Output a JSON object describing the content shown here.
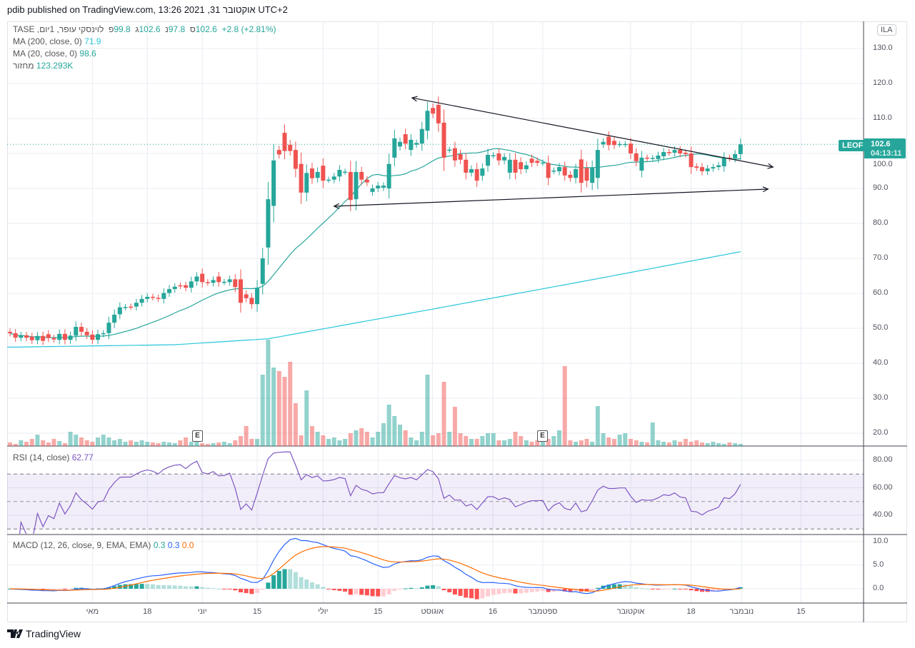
{
  "header": {
    "published": "pdib published on TradingView.com, אוקטובר 31, 2021 13:26 UTC+2"
  },
  "legend": {
    "symbol": "לוינסקי עופר, 1יום, TASE",
    "open_label": "פ",
    "open": "99.8",
    "high_label": "ג",
    "high": "102.6",
    "low_label": "נ",
    "low": "97.8",
    "close_label": "ס",
    "close": "102.6",
    "change": "+2.8 (+2.81%)",
    "ma200_label": "MA (200, close, 0)",
    "ma200_value": "71.9",
    "ma20_label": "MA (20, close, 0)",
    "ma20_value": "98.6",
    "volume_label": "מחזור",
    "volume_value": "123.293K"
  },
  "rsi_legend": {
    "label": "RSI (14, close)",
    "value": "62.77"
  },
  "macd_legend": {
    "label": "MACD (12, 26, close, 9, EMA, EMA)",
    "hist": "0.3",
    "macd": "0.3",
    "signal": "0.0"
  },
  "price_axis": {
    "currency": "ILA",
    "labels": [
      "130.0",
      "120.0",
      "110.0",
      "100.0",
      "90.0",
      "80.0",
      "70.0",
      "60.0",
      "50.0",
      "40.0",
      "30.0",
      "20.0"
    ],
    "rsi_labels": [
      "80.00",
      "60.00",
      "40.00"
    ],
    "macd_labels": [
      "10.0",
      "5.0",
      "0.0"
    ],
    "last_symbol": "LEOF",
    "last_price": "102.6",
    "countdown": "04:13:11"
  },
  "time_axis": [
    {
      "label": "מאי",
      "bar": 15
    },
    {
      "label": "18",
      "bar": 25
    },
    {
      "label": "יוני",
      "bar": 35
    },
    {
      "label": "15",
      "bar": 45
    },
    {
      "label": "יולי",
      "bar": 57
    },
    {
      "label": "15",
      "bar": 67
    },
    {
      "label": "אוגוסט",
      "bar": 76.9
    },
    {
      "label": "16",
      "bar": 87.9
    },
    {
      "label": "ספטמבר",
      "bar": 97
    },
    {
      "label": "אוקטובר",
      "bar": 113
    },
    {
      "label": "18",
      "bar": 124
    },
    {
      "label": "נובמבר",
      "bar": 133.2
    },
    {
      "label": "15",
      "bar": 144
    }
  ],
  "earnings": [
    {
      "label": "E",
      "bar": 34.2
    },
    {
      "label": "E",
      "bar": 97
    }
  ],
  "footer": {
    "brand": "TradingView"
  },
  "colors": {
    "up": "#26a69a",
    "down": "#ef5350",
    "ma20": "#26a69a",
    "ma200": "#26c6da",
    "rsi": "#7e57c2",
    "macd": "#2962ff",
    "signal": "#ff6d00"
  },
  "chart_data": {
    "type": "candlestick",
    "ylim": [
      18,
      138
    ],
    "candles_oc": [
      [
        49,
        48.6
      ],
      [
        48.6,
        47.3
      ],
      [
        47.3,
        48.0
      ],
      [
        48,
        47.3
      ],
      [
        47.6,
        46.6
      ],
      [
        46.6,
        47.8
      ],
      [
        47.8,
        46.4
      ],
      [
        48.3,
        47.2
      ],
      [
        47.2,
        46.8
      ],
      [
        46.7,
        48.4
      ],
      [
        48.4,
        46.7
      ],
      [
        46.7,
        47.9
      ],
      [
        47.9,
        50.4
      ],
      [
        50.4,
        49
      ],
      [
        49,
        48
      ],
      [
        48.2,
        46.7
      ],
      [
        46.7,
        48.3
      ],
      [
        48.3,
        48.6
      ],
      [
        48.6,
        51.6
      ],
      [
        51.6,
        53.9
      ],
      [
        54,
        56
      ],
      [
        56,
        56.1
      ],
      [
        56.2,
        56.1
      ],
      [
        56.2,
        57.3
      ],
      [
        57.3,
        58.4
      ],
      [
        58.4,
        59
      ],
      [
        59,
        58.8
      ],
      [
        58.7,
        58.4
      ],
      [
        58.4,
        60.1
      ],
      [
        60.1,
        61.2
      ],
      [
        61.2,
        61.9
      ],
      [
        62.3,
        62.1
      ],
      [
        62.3,
        61.6
      ],
      [
        61.6,
        63.4
      ],
      [
        63.4,
        64.8
      ],
      [
        65.6,
        63.2
      ],
      [
        63.2,
        63
      ],
      [
        63,
        63.8
      ],
      [
        64.8,
        63.2
      ],
      [
        63.2,
        63.3
      ],
      [
        63.2,
        64
      ],
      [
        64,
        61.8
      ],
      [
        64,
        57.3
      ],
      [
        59.7,
        58.6
      ],
      [
        58.7,
        56.9
      ],
      [
        56.9,
        61.6
      ],
      [
        62.7,
        70
      ],
      [
        73.1,
        86.9
      ],
      [
        85,
        98
      ],
      [
        101,
        99.7
      ],
      [
        105.9,
        100.7
      ],
      [
        102.5,
        100.7
      ],
      [
        101,
        95.6
      ],
      [
        97,
        88.8
      ],
      [
        88.8,
        94.4
      ],
      [
        95.7,
        92.9
      ],
      [
        93,
        94.7
      ],
      [
        96.5,
        92.2
      ],
      [
        92.4,
        92.5
      ],
      [
        92.5,
        93.4
      ],
      [
        93.4,
        95.3
      ],
      [
        94.7,
        94.8
      ],
      [
        94.7,
        86.7
      ],
      [
        86.9,
        94.7
      ],
      [
        94.7,
        92.5
      ],
      [
        92.5,
        91.7
      ],
      [
        89,
        90
      ],
      [
        90,
        90.8
      ],
      [
        90.2,
        90.8
      ],
      [
        90,
        97
      ],
      [
        98.8,
        104.3
      ],
      [
        102,
        103.3
      ],
      [
        105.5,
        102.8
      ],
      [
        101,
        103.9
      ],
      [
        102.5,
        103
      ],
      [
        102.8,
        107
      ],
      [
        106.5,
        112.2
      ],
      [
        113,
        111.4
      ],
      [
        113.9,
        108.6
      ],
      [
        108.8,
        98.8
      ],
      [
        101,
        101.1
      ],
      [
        101.5,
        98
      ],
      [
        99.8,
        98.2
      ],
      [
        98.2,
        94.5
      ],
      [
        94.5,
        95.5
      ],
      [
        95.5,
        92.2
      ],
      [
        93.6,
        95.7
      ],
      [
        96.5,
        99.6
      ],
      [
        99.4,
        99.5
      ],
      [
        100,
        98
      ],
      [
        98,
        99
      ],
      [
        94.5,
        98.2
      ],
      [
        98.2,
        94.5
      ],
      [
        97.5,
        95.5
      ],
      [
        95.5,
        96.6
      ],
      [
        98.5,
        97.3
      ],
      [
        97.9,
        97.3
      ],
      [
        97.3,
        97.4
      ],
      [
        97.3,
        93
      ],
      [
        94.9,
        95.1
      ],
      [
        94.9,
        96.1
      ],
      [
        96.1,
        93.7
      ],
      [
        93.9,
        93
      ],
      [
        93,
        95.5
      ],
      [
        98.3,
        91.6
      ],
      [
        95.8,
        92.2
      ],
      [
        91.6,
        95.9
      ],
      [
        93,
        101
      ],
      [
        102.6,
        103.3
      ],
      [
        104.8,
        102.4
      ],
      [
        103.6,
        102.4
      ],
      [
        102.6,
        102.7
      ],
      [
        102.6,
        102.7
      ],
      [
        102.8,
        100
      ],
      [
        100,
        97.8
      ],
      [
        95.1,
        98.8
      ],
      [
        98.8,
        98.6
      ],
      [
        98.6,
        98.7
      ],
      [
        98.4,
        99.4
      ],
      [
        99.2,
        100.4
      ],
      [
        100.4,
        100.2
      ],
      [
        100.2,
        101
      ],
      [
        101,
        100
      ],
      [
        100.2,
        99.8
      ],
      [
        100,
        96.1
      ],
      [
        96.3,
        95.9
      ],
      [
        96.1,
        94.9
      ],
      [
        94.9,
        95.7
      ],
      [
        95.7,
        96.1
      ],
      [
        96.1,
        96.6
      ],
      [
        96.3,
        98.8
      ],
      [
        98.8,
        98.6
      ],
      [
        98.6,
        99.8
      ],
      [
        99.8,
        102.6
      ]
    ],
    "volume_k": [
      205,
      123,
      328,
      246,
      410,
      656,
      328,
      205,
      410,
      287,
      164,
      820,
      656,
      492,
      328,
      246,
      492,
      656,
      492,
      328,
      410,
      246,
      328,
      246,
      328,
      246,
      205,
      164,
      246,
      205,
      164,
      328,
      492,
      246,
      328,
      164,
      123,
      164,
      205,
      246,
      164,
      328,
      574,
      1148,
      410,
      410,
      4100,
      6109,
      4510,
      4305,
      3977,
      4838,
      2460,
      615,
      3198,
      1148,
      820,
      615,
      410,
      492,
      328,
      410,
      738,
      902,
      1025,
      820,
      492,
      820,
      1312,
      2378,
      1722,
      1230,
      902,
      492,
      328,
      820,
      4100,
      615,
      738,
      3690,
      820,
      2255,
      738,
      574,
      410,
      410,
      574,
      738,
      738,
      328,
      328,
      410,
      820,
      574,
      328,
      246,
      328,
      246,
      410,
      574,
      902,
      4592,
      328,
      246,
      328,
      410,
      246,
      2296,
      738,
      492,
      410,
      656,
      738,
      410,
      328,
      246,
      205,
      1353,
      328,
      246,
      205,
      328,
      246,
      410,
      246,
      328,
      205,
      164,
      246,
      164,
      123,
      205,
      164,
      123.293
    ],
    "ma200_anchors": [
      [
        0,
        44.6
      ],
      [
        30,
        45.3
      ],
      [
        47,
        47
      ],
      [
        77,
        55.5
      ],
      [
        106,
        63.9
      ],
      [
        133,
        71.9
      ]
    ],
    "trendlines": [
      {
        "from": [
          73.2,
          115.9
        ],
        "to": [
          138.9,
          96.1
        ]
      },
      {
        "from": [
          59,
          84.9
        ],
        "to": [
          138,
          89.8
        ]
      }
    ],
    "rsi_range": [
      26.5,
      89.9
    ],
    "macd_range": [
      -3,
      11.5
    ]
  }
}
